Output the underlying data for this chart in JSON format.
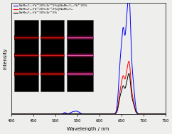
{
  "title": "",
  "xlabel": "Wavelength / nm",
  "ylabel": "Intensity",
  "xlim": [
    400,
    750
  ],
  "ylim": [
    0,
    1.05
  ],
  "legend": [
    "NaMn₃F₁₀:Yb³⁺20%,Er³⁺2%@NaMn₃F₁₀:Yb³⁺20%",
    "NaMn₃F₁₀:Yb³⁺20%,Er³⁺2%@NaMn₃F₁₀",
    "NaMn₃F₁₀:Yb³⁺20%,Er³⁺2%"
  ],
  "colors": [
    "blue",
    "red",
    "black"
  ],
  "background_color": "#eeeeec",
  "xticks": [
    400,
    450,
    500,
    550,
    600,
    650,
    700,
    750
  ]
}
